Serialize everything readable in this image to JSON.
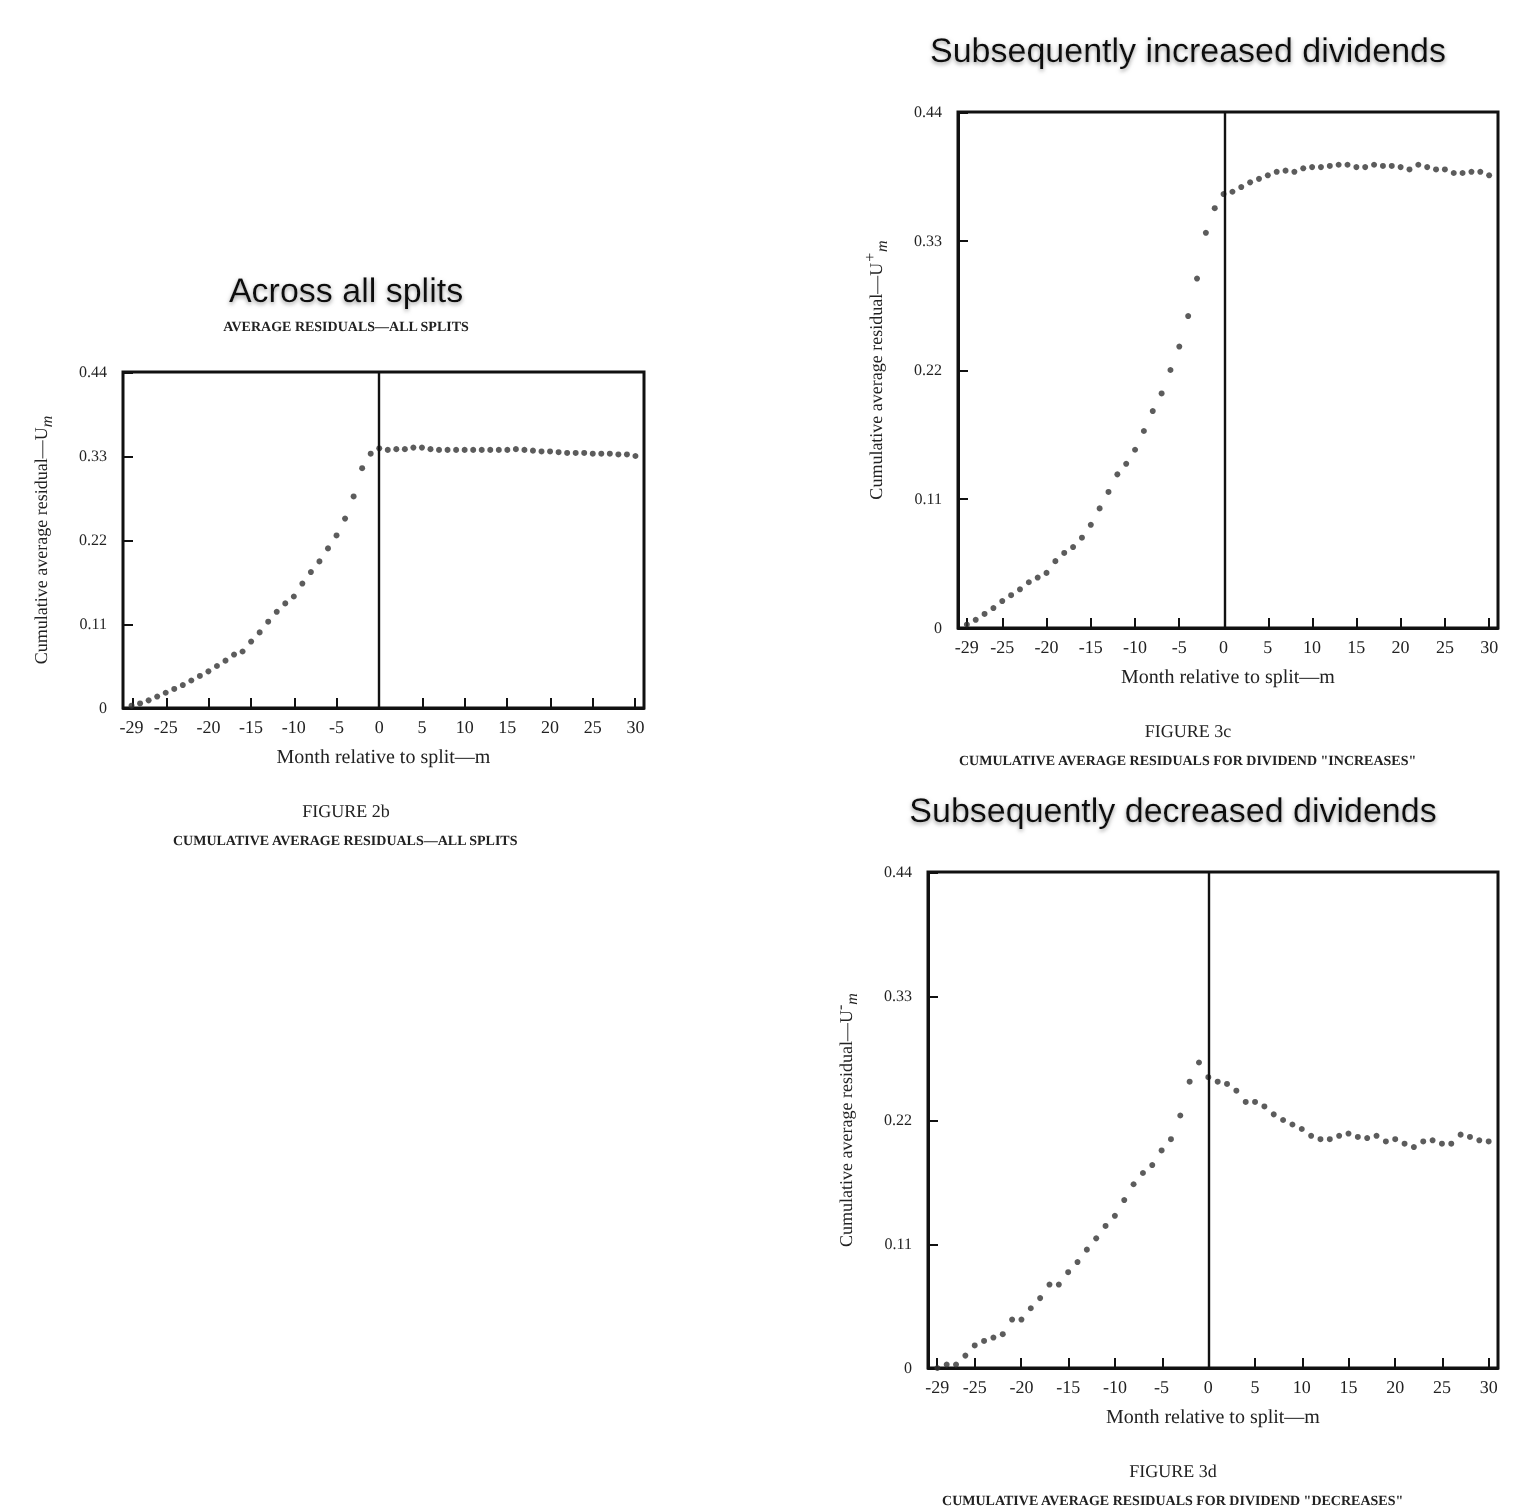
{
  "chart_data": [
    {
      "type": "scatter",
      "title": "Across all splits",
      "subtitle": "AVERAGE RESIDUALS—ALL SPLITS",
      "xlabel": "Month relative to split—m",
      "ylabel": "Cumulative average residual—U$_{m}$",
      "annotations": [
        "FIGURE 2b",
        "CUMULATIVE AVERAGE RESIDUALS—ALL SPLITS"
      ],
      "xlim": [
        -30,
        31
      ],
      "xticks": [
        -29,
        -25,
        -20,
        -15,
        -10,
        -5,
        0,
        5,
        10,
        15,
        20,
        25,
        30
      ],
      "ylim": [
        0,
        0.44
      ],
      "yticks": [
        0,
        0.11,
        0.22,
        0.33,
        0.44
      ],
      "grid": false,
      "marker": "circle",
      "ref_lines": [
        {
          "axis": "x",
          "value": 0,
          "color": "#111111"
        }
      ],
      "x": [
        -29,
        -28,
        -27,
        -26,
        -25,
        -24,
        -23,
        -22,
        -21,
        -20,
        -19,
        -18,
        -17,
        -16,
        -15,
        -14,
        -13,
        -12,
        -11,
        -10,
        -9,
        -8,
        -7,
        -6,
        -5,
        -4,
        -3,
        -2,
        -1,
        0,
        1,
        2,
        3,
        4,
        5,
        6,
        7,
        8,
        9,
        10,
        11,
        12,
        13,
        14,
        15,
        16,
        17,
        18,
        19,
        20,
        21,
        22,
        23,
        24,
        25,
        26,
        27,
        28,
        29,
        30
      ],
      "series": [
        {
          "color": "#333333",
          "values": [
            0.003,
            0.006,
            0.01,
            0.015,
            0.02,
            0.025,
            0.03,
            0.036,
            0.042,
            0.048,
            0.055,
            0.062,
            0.07,
            0.074,
            0.087,
            0.099,
            0.113,
            0.126,
            0.137,
            0.146,
            0.163,
            0.178,
            0.192,
            0.209,
            0.226,
            0.248,
            0.277,
            0.314,
            0.333,
            0.34,
            0.338,
            0.339,
            0.339,
            0.341,
            0.341,
            0.339,
            0.338,
            0.338,
            0.338,
            0.338,
            0.338,
            0.338,
            0.338,
            0.338,
            0.338,
            0.339,
            0.338,
            0.337,
            0.336,
            0.336,
            0.335,
            0.334,
            0.334,
            0.334,
            0.333,
            0.333,
            0.333,
            0.332,
            0.332,
            0.33
          ]
        }
      ]
    },
    {
      "type": "scatter",
      "title": "Subsequently increased dividends",
      "xlabel": "Month relative to split—m",
      "ylabel": "Cumulative average residual—U$^{+}$$_{m}$",
      "annotations": [
        "FIGURE 3c",
        "CUMULATIVE AVERAGE RESIDUALS FOR DIVIDEND \"INCREASES\""
      ],
      "xlim": [
        -30,
        31
      ],
      "xticks": [
        -29,
        -25,
        -20,
        -15,
        -10,
        -5,
        0,
        5,
        10,
        15,
        20,
        25,
        30
      ],
      "ylim": [
        0,
        0.44
      ],
      "yticks": [
        0,
        0.11,
        0.22,
        0.33,
        0.44
      ],
      "grid": false,
      "marker": "circle",
      "ref_lines": [
        {
          "axis": "x",
          "value": 0,
          "color": "#111111"
        }
      ],
      "x": [
        -29,
        -28,
        -27,
        -26,
        -25,
        -24,
        -23,
        -22,
        -21,
        -20,
        -19,
        -18,
        -17,
        -16,
        -15,
        -14,
        -13,
        -12,
        -11,
        -10,
        -9,
        -8,
        -7,
        -6,
        -5,
        -4,
        -3,
        -2,
        -1,
        0,
        1,
        2,
        3,
        4,
        5,
        6,
        7,
        8,
        9,
        10,
        11,
        12,
        13,
        14,
        15,
        16,
        17,
        18,
        19,
        20,
        21,
        22,
        23,
        24,
        25,
        26,
        27,
        28,
        29,
        30
      ],
      "series": [
        {
          "color": "#333333",
          "values": [
            0.003,
            0.007,
            0.012,
            0.017,
            0.023,
            0.028,
            0.033,
            0.039,
            0.043,
            0.047,
            0.057,
            0.064,
            0.069,
            0.077,
            0.088,
            0.102,
            0.116,
            0.131,
            0.14,
            0.152,
            0.168,
            0.185,
            0.2,
            0.22,
            0.24,
            0.266,
            0.298,
            0.337,
            0.358,
            0.37,
            0.372,
            0.376,
            0.38,
            0.383,
            0.386,
            0.389,
            0.39,
            0.389,
            0.392,
            0.393,
            0.393,
            0.394,
            0.395,
            0.395,
            0.393,
            0.393,
            0.395,
            0.394,
            0.394,
            0.393,
            0.391,
            0.395,
            0.393,
            0.391,
            0.391,
            0.388,
            0.388,
            0.389,
            0.389,
            0.386
          ]
        }
      ]
    },
    {
      "type": "scatter",
      "title": "Subsequently decreased dividends",
      "xlabel": "Month relative to split—m",
      "ylabel": "Cumulative average residual—U$^{-}$$_{m}$",
      "annotations": [
        "FIGURE 3d",
        "CUMULATIVE AVERAGE RESIDUALS FOR DIVIDEND \"DECREASES\""
      ],
      "xlim": [
        -30,
        31
      ],
      "xticks": [
        -29,
        -25,
        -20,
        -15,
        -10,
        -5,
        0,
        5,
        10,
        15,
        20,
        25,
        30
      ],
      "ylim": [
        0,
        0.44
      ],
      "yticks": [
        0,
        0.11,
        0.22,
        0.33,
        0.44
      ],
      "grid": false,
      "marker": "circle",
      "ref_lines": [
        {
          "axis": "x",
          "value": 0,
          "color": "#111111"
        }
      ],
      "x": [
        -29,
        -28,
        -27,
        -26,
        -25,
        -24,
        -23,
        -22,
        -21,
        -20,
        -19,
        -18,
        -17,
        -16,
        -15,
        -14,
        -13,
        -12,
        -11,
        -10,
        -9,
        -8,
        -7,
        -6,
        -5,
        -4,
        -3,
        -2,
        -1,
        0,
        1,
        2,
        3,
        4,
        5,
        6,
        7,
        8,
        9,
        10,
        11,
        12,
        13,
        14,
        15,
        16,
        17,
        18,
        19,
        20,
        21,
        22,
        23,
        24,
        25,
        26,
        27,
        28,
        29,
        30
      ],
      "series": [
        {
          "color": "#333333",
          "values": [
            0,
            0.003,
            0.003,
            0.011,
            0.02,
            0.024,
            0.027,
            0.03,
            0.043,
            0.043,
            0.053,
            0.062,
            0.074,
            0.074,
            0.085,
            0.094,
            0.105,
            0.115,
            0.126,
            0.135,
            0.149,
            0.163,
            0.173,
            0.18,
            0.193,
            0.203,
            0.224,
            0.254,
            0.271,
            0.258,
            0.254,
            0.252,
            0.246,
            0.236,
            0.236,
            0.232,
            0.225,
            0.22,
            0.216,
            0.212,
            0.206,
            0.203,
            0.203,
            0.206,
            0.208,
            0.205,
            0.204,
            0.206,
            0.201,
            0.203,
            0.199,
            0.196,
            0.201,
            0.202,
            0.199,
            0.199,
            0.207,
            0.205,
            0.202,
            0.201
          ]
        }
      ]
    }
  ]
}
